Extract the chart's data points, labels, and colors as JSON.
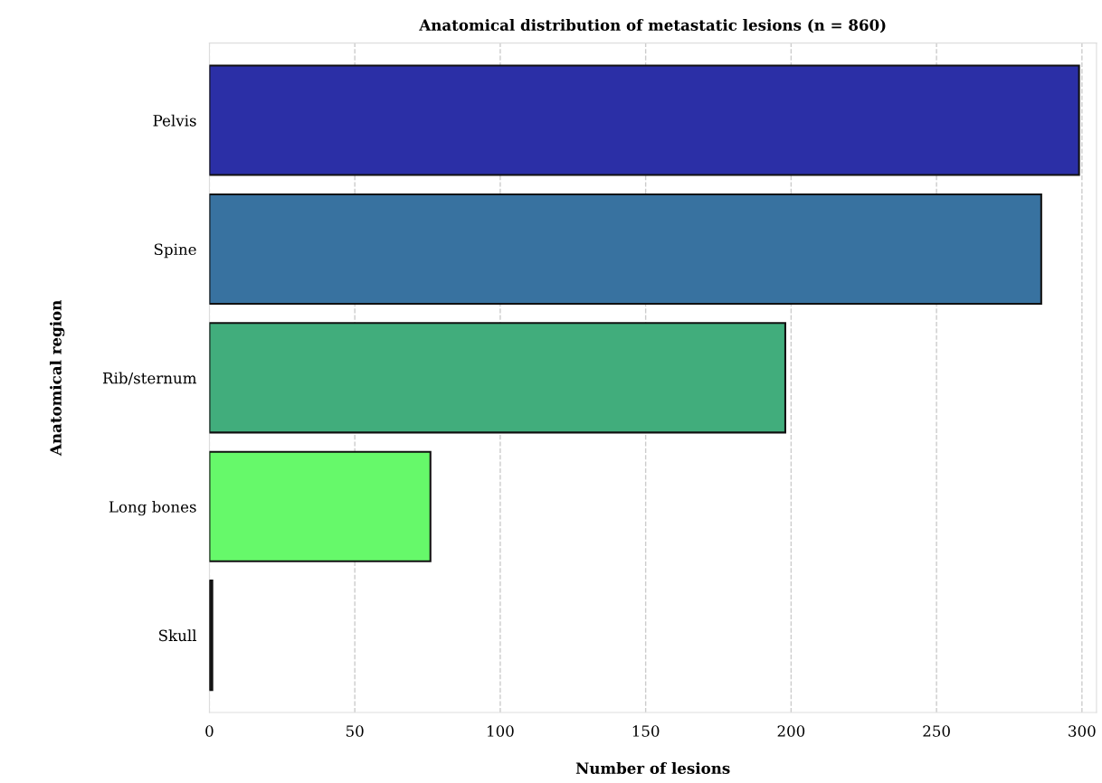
{
  "chart_data": {
    "type": "bar",
    "orientation": "horizontal",
    "title": "Anatomical distribution of metastatic lesions (n = 860)",
    "xlabel": "Number of lesions",
    "ylabel": "Anatomical region",
    "categories": [
      "Pelvis",
      "Spine",
      "Rib/sternum",
      "Long bones",
      "Skull"
    ],
    "values": [
      299,
      286,
      198,
      76,
      1
    ],
    "colors": [
      "#2b2fa6",
      "#3872a0",
      "#41ad7c",
      "#66f96a",
      "#1a1a1a"
    ],
    "xlim": [
      0,
      305
    ],
    "xticks": [
      0,
      50,
      100,
      150,
      200,
      250,
      300
    ],
    "grid": "x"
  }
}
